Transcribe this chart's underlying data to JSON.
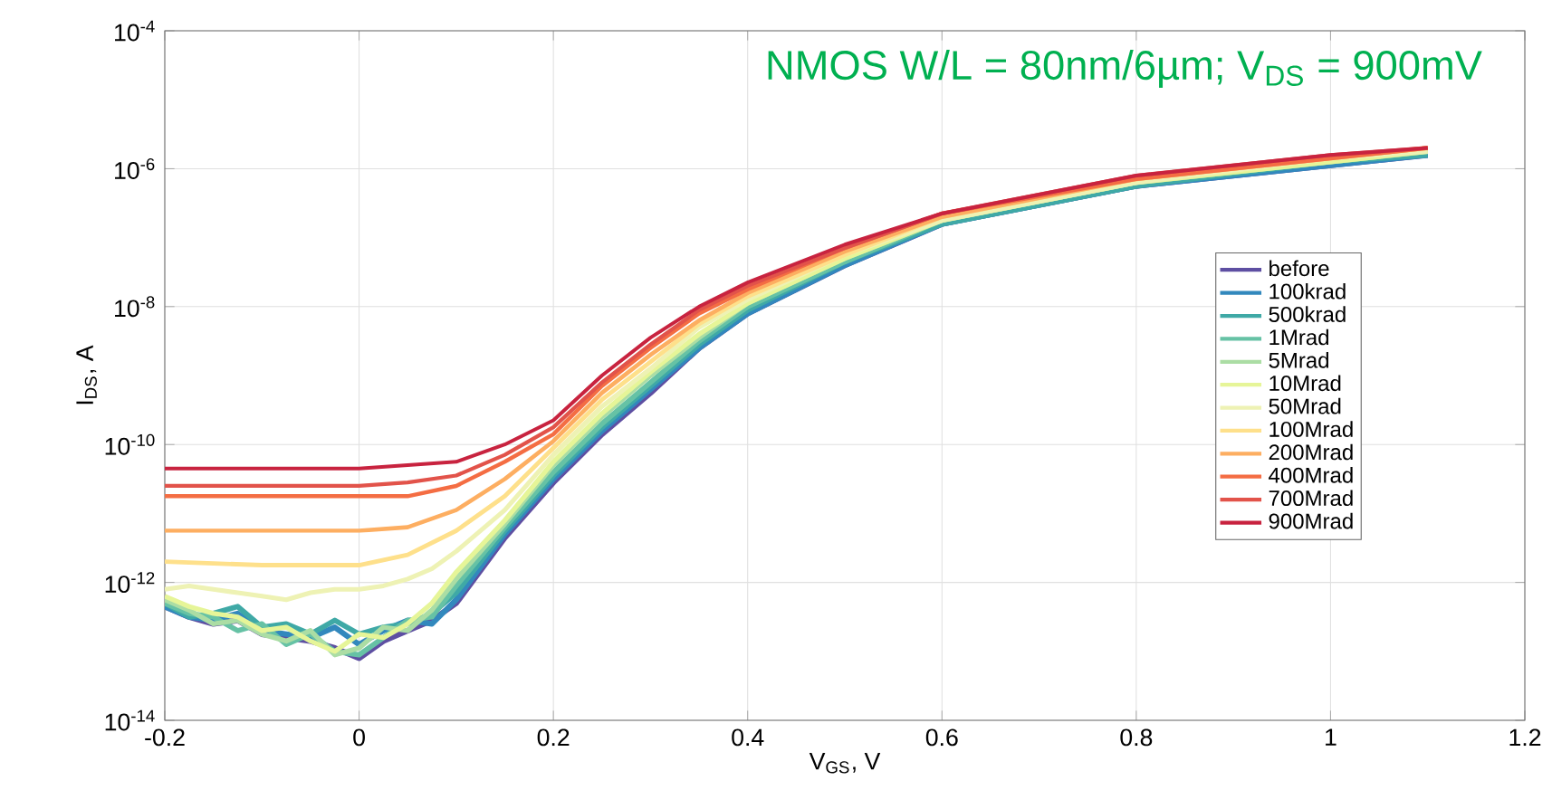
{
  "chart_data": {
    "type": "line",
    "title": "NMOS W/L = 80nm/6µm; V$_{DS}$ = 900mV",
    "xlabel": "V$_{GS}$, V",
    "ylabel": "I$_{DS}$, A",
    "log": "y",
    "grid": true,
    "legend": "right",
    "xlim": [
      -0.2,
      1.2
    ],
    "xticks": [
      -0.2,
      0,
      0.2,
      0.4,
      0.6,
      0.8,
      1,
      1.2
    ],
    "ylim": [
      1e-14,
      0.0001
    ],
    "yticks": [
      {
        "value": 1e-14,
        "label": "10$^{-14}$"
      },
      {
        "value": 1e-12,
        "label": "10$^{-12}$"
      },
      {
        "value": 1e-10,
        "label": "10$^{-10}$"
      },
      {
        "value": 1e-08,
        "label": "10$^{-8}$"
      },
      {
        "value": 1e-06,
        "label": "10$^{-6}$"
      },
      {
        "value": 0.0001,
        "label": "10$^{-4}$"
      }
    ],
    "x": [
      -0.2,
      -0.175,
      -0.15,
      -0.125,
      -0.1,
      -0.075,
      -0.05,
      -0.025,
      0,
      0.025,
      0.05,
      0.075,
      0.1,
      0.15,
      0.2,
      0.25,
      0.3,
      0.35,
      0.4,
      0.5,
      0.6,
      0.8,
      1.0,
      1.1
    ],
    "series": [
      {
        "name": "before",
        "color": "#5e4fa2",
        "values": [
          4.47e-13,
          3.16e-13,
          2.51e-13,
          2.82e-13,
          1.78e-13,
          1.58e-13,
          1.41e-13,
          1.12e-13,
          7.94e-14,
          1.41e-13,
          2e-13,
          2.82e-13,
          5.01e-13,
          4.47e-12,
          2.82e-11,
          1.41e-10,
          5.62e-10,
          2.51e-09,
          7.94e-09,
          3.98e-08,
          1.58e-07,
          5.62e-07,
          1.12e-06,
          1.58e-06
        ]
      },
      {
        "name": "100krad",
        "color": "#3288bd",
        "values": [
          4.47e-13,
          3.16e-13,
          2.82e-13,
          3.55e-13,
          2e-13,
          1.78e-13,
          1.58e-13,
          2.24e-13,
          1.26e-13,
          2e-13,
          2.82e-13,
          2.51e-13,
          5.62e-13,
          5.01e-12,
          3.16e-11,
          1.58e-10,
          6.31e-10,
          2.51e-09,
          7.94e-09,
          3.98e-08,
          1.58e-07,
          5.62e-07,
          1.12e-06,
          1.58e-06
        ]
      },
      {
        "name": "500krad",
        "color": "#3fa9a6",
        "values": [
          5.01e-13,
          3.16e-13,
          3.55e-13,
          4.47e-13,
          2.24e-13,
          2.51e-13,
          1.78e-13,
          2.82e-13,
          1.78e-13,
          2.24e-13,
          2.51e-13,
          3.55e-13,
          7.08e-13,
          5.62e-12,
          3.55e-11,
          1.78e-10,
          7.08e-10,
          2.82e-09,
          8.91e-09,
          4.47e-08,
          1.58e-07,
          5.62e-07,
          1.26e-06,
          1.58e-06
        ]
      },
      {
        "name": "1Mrad",
        "color": "#66c2a5",
        "values": [
          5.01e-13,
          3.55e-13,
          3.16e-13,
          2e-13,
          2.51e-13,
          1.26e-13,
          1.78e-13,
          1e-13,
          8.91e-14,
          1.58e-13,
          2.82e-13,
          3.16e-13,
          8.91e-13,
          6.31e-12,
          3.98e-11,
          2e-10,
          7.94e-10,
          3.16e-09,
          1e-08,
          4.47e-08,
          1.78e-07,
          6.31e-07,
          1.26e-06,
          1.78e-06
        ]
      },
      {
        "name": "5Mrad",
        "color": "#abdda4",
        "values": [
          5.62e-13,
          3.98e-13,
          2.51e-13,
          2.82e-13,
          1.78e-13,
          1.41e-13,
          2e-13,
          8.91e-14,
          1.12e-13,
          2.24e-13,
          2e-13,
          3.98e-13,
          1.12e-12,
          7.08e-12,
          5.01e-11,
          2.51e-10,
          1e-09,
          3.55e-09,
          1.12e-08,
          5.01e-08,
          1.78e-07,
          6.31e-07,
          1.26e-06,
          1.78e-06
        ]
      },
      {
        "name": "10Mrad",
        "color": "#e6f598",
        "values": [
          6.31e-13,
          4.47e-13,
          3.55e-13,
          3.16e-13,
          2e-13,
          2.24e-13,
          1.41e-13,
          1e-13,
          1.78e-13,
          1.58e-13,
          2.51e-13,
          5.01e-13,
          1.41e-12,
          7.94e-12,
          5.62e-11,
          2.82e-10,
          1.12e-09,
          3.98e-09,
          1.12e-08,
          5.01e-08,
          1.78e-07,
          6.31e-07,
          1.26e-06,
          1.78e-06
        ]
      },
      {
        "name": "50Mrad",
        "color": "#eef2b4",
        "values": [
          7.94e-13,
          8.91e-13,
          7.94e-13,
          7.08e-13,
          6.31e-13,
          5.62e-13,
          7.08e-13,
          7.94e-13,
          7.94e-13,
          8.91e-13,
          1.12e-12,
          1.58e-12,
          2.82e-12,
          1.12e-11,
          7.08e-11,
          3.55e-10,
          1.26e-09,
          5.01e-09,
          1.26e-08,
          5.62e-08,
          1.78e-07,
          6.31e-07,
          1.41e-06,
          1.78e-06
        ]
      },
      {
        "name": "100Mrad",
        "color": "#fee08b",
        "x": [
          -0.2,
          -0.1,
          0,
          0.05,
          0.1,
          0.15,
          0.2,
          0.25,
          0.3,
          0.35,
          0.4,
          0.5,
          0.6,
          0.8,
          1.0,
          1.1
        ],
        "values": [
          2e-12,
          1.78e-12,
          1.78e-12,
          2.51e-12,
          5.62e-12,
          1.78e-11,
          8.91e-11,
          4.47e-10,
          1.58e-09,
          5.62e-09,
          1.41e-08,
          5.62e-08,
          2e-07,
          7.08e-07,
          1.41e-06,
          2e-06
        ]
      },
      {
        "name": "200Mrad",
        "color": "#fdae61",
        "x": [
          -0.2,
          -0.1,
          0,
          0.05,
          0.1,
          0.15,
          0.2,
          0.25,
          0.3,
          0.35,
          0.4,
          0.5,
          0.6,
          0.8,
          1.0,
          1.1
        ],
        "values": [
          5.62e-12,
          5.62e-12,
          5.62e-12,
          6.31e-12,
          1.12e-11,
          3.16e-11,
          1.12e-10,
          5.62e-10,
          2e-09,
          6.31e-09,
          1.58e-08,
          6.31e-08,
          2e-07,
          7.08e-07,
          1.41e-06,
          2e-06
        ]
      },
      {
        "name": "400Mrad",
        "color": "#f46d43",
        "x": [
          -0.2,
          -0.1,
          0,
          0.05,
          0.1,
          0.15,
          0.2,
          0.25,
          0.3,
          0.35,
          0.4,
          0.5,
          0.6,
          0.8,
          1.0,
          1.1
        ],
        "values": [
          1.78e-11,
          1.78e-11,
          1.78e-11,
          1.78e-11,
          2.51e-11,
          5.62e-11,
          1.41e-10,
          7.08e-10,
          2.51e-09,
          7.94e-09,
          1.78e-08,
          7.08e-08,
          2.24e-07,
          7.08e-07,
          1.41e-06,
          2e-06
        ]
      },
      {
        "name": "700Mrad",
        "color": "#e2534a",
        "x": [
          -0.2,
          -0.1,
          0,
          0.05,
          0.1,
          0.15,
          0.2,
          0.25,
          0.3,
          0.35,
          0.4,
          0.5,
          0.6,
          0.8,
          1.0,
          1.1
        ],
        "values": [
          2.51e-11,
          2.51e-11,
          2.51e-11,
          2.82e-11,
          3.55e-11,
          7.08e-11,
          1.78e-10,
          7.94e-10,
          2.82e-09,
          8.91e-09,
          2e-08,
          7.08e-08,
          2.24e-07,
          7.94e-07,
          1.58e-06,
          2e-06
        ]
      },
      {
        "name": "900Mrad",
        "color": "#c8233f",
        "x": [
          -0.2,
          -0.1,
          0,
          0.05,
          0.1,
          0.15,
          0.2,
          0.25,
          0.3,
          0.35,
          0.4,
          0.5,
          0.6,
          0.8,
          1.0,
          1.1
        ],
        "values": [
          4.47e-11,
          4.47e-11,
          4.47e-11,
          5.01e-11,
          5.62e-11,
          1e-10,
          2.24e-10,
          1e-09,
          3.55e-09,
          1e-08,
          2.24e-08,
          7.94e-08,
          2.24e-07,
          7.94e-07,
          1.58e-06,
          2e-06
        ]
      }
    ]
  }
}
